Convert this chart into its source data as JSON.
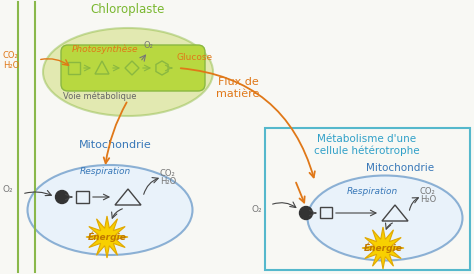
{
  "bg_color": "#f8f8f4",
  "left_box_color": "#8ab84a",
  "right_box_color": "#55b8cc",
  "chloroplaste_label": "Chloroplaste",
  "chloroplaste_color": "#7ab830",
  "photosynthese_label": "Photosynthèse",
  "photosynthese_color": "#e07818",
  "voie_metabolique_label": "Voie métabolique",
  "voie_color": "#666666",
  "chloroplaste_oval_color": "#c8d860",
  "chloroplaste_oval_edge": "#8ab840",
  "chloroplaste_inner_color": "#b8d840",
  "mitochondrie_label": "Mitochondrie",
  "mitochondrie_color": "#3878b8",
  "respiration_label": "Respiration",
  "energie_label": "Énergie",
  "energie_text_color": "#c07800",
  "flux_label": "Flux de\nmatière",
  "flux_color": "#e07818",
  "heterotrophe_label": "Métabolisme d'une\ncellule hétérotrophe",
  "heterotrophe_color": "#30a0c8",
  "co2_color": "#777777",
  "o2_color": "#777777",
  "orange_color": "#e07818",
  "dark_color": "#444444",
  "star_color": "#f8d000",
  "star_edge_color": "#e0a800",
  "mito_oval_face": "#ddeeff",
  "mito_oval_edge": "#3878b8"
}
